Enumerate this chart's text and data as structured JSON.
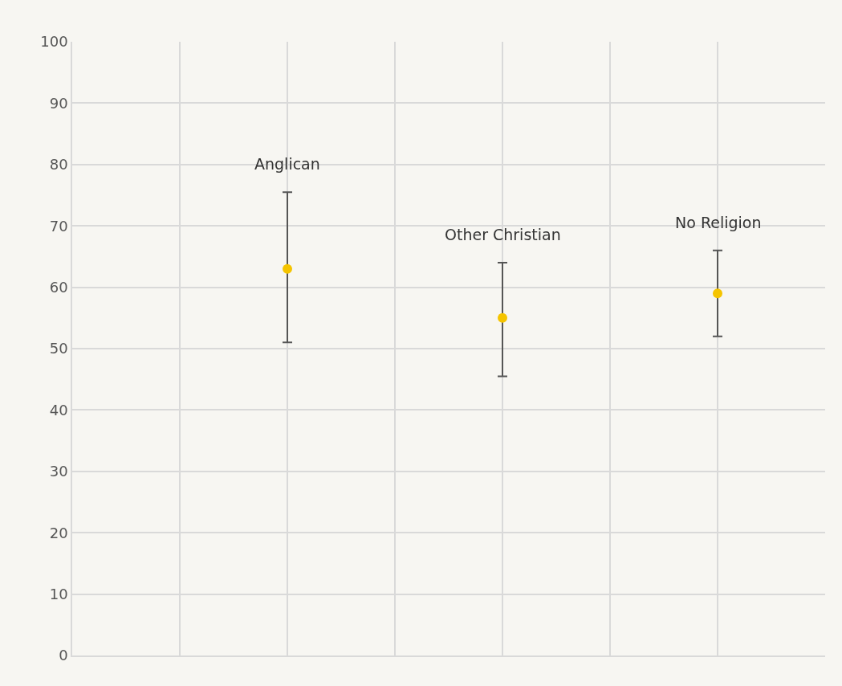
{
  "chart_data": {
    "type": "scatter",
    "categories": [
      "Anglican",
      "Other Christian",
      "No Religion"
    ],
    "series": [
      {
        "color": "#f5c400",
        "values": [
          63,
          55,
          59
        ],
        "errors": [
          [
            51,
            75.5
          ],
          [
            45.5,
            64
          ],
          [
            52,
            66
          ]
        ]
      }
    ],
    "ylim": [
      0,
      100
    ],
    "yticks": [
      0,
      10,
      20,
      30,
      40,
      50,
      60,
      70,
      80,
      90,
      100
    ],
    "grid": true,
    "marker": "circle"
  }
}
